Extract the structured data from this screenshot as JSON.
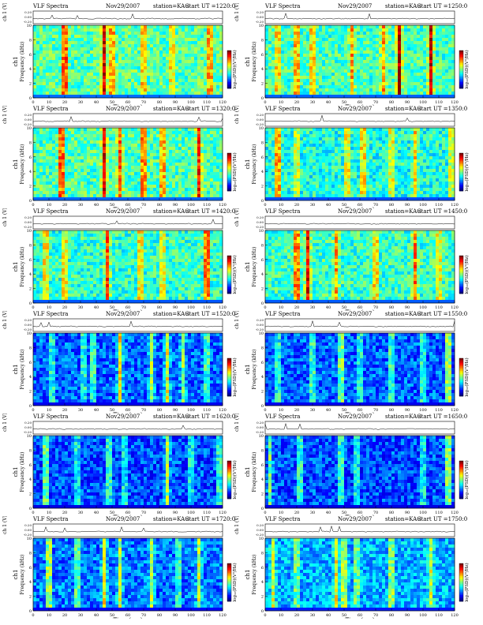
{
  "page_header": "",
  "panels": [
    {
      "title": "VLF Spectra",
      "date": "Nov29/2007",
      "station": "station=KAG",
      "start": "start  UT  =1220:0"
    },
    {
      "title": "VLF Spectra",
      "date": "Nov29/2007",
      "station": "station=KAG",
      "start": "start  UT  =1250:0"
    },
    {
      "title": "VLF Spectra",
      "date": "Nov29/2007",
      "station": "station=KAG",
      "start": "start  UT  =1320:0"
    },
    {
      "title": "VLF Spectra",
      "date": "Nov29/2007",
      "station": "station=KAG",
      "start": "start  UT  =1350:0"
    },
    {
      "title": "VLF Spectra",
      "date": "Nov29/2007",
      "station": "station=KAG",
      "start": "start  UT  =1420:0"
    },
    {
      "title": "VLF Spectra",
      "date": "Nov29/2007",
      "station": "station=KAG",
      "start": "start  UT  =1450:0"
    },
    {
      "title": "VLF Spectra",
      "date": "Nov29/2007",
      "station": "station=KAG",
      "start": "start  UT  =1520:0"
    },
    {
      "title": "VLF Spectra",
      "date": "Nov29/2007",
      "station": "station=KAG",
      "start": "start  UT  =1550:0"
    },
    {
      "title": "VLF Spectra",
      "date": "Nov29/2007",
      "station": "station=KAG",
      "start": "start  UT  =1620:0"
    },
    {
      "title": "VLF Spectra",
      "date": "Nov29/2007",
      "station": "station=KAG",
      "start": "start  UT  =1650:0"
    },
    {
      "title": "VLF Spectra",
      "date": "Nov29/2007",
      "station": "station=KAG",
      "start": "start  UT  =1720:0"
    },
    {
      "title": "VLF Spectra",
      "date": "Nov29/2007",
      "station": "station=KAG",
      "start": "start  UT  =1750:0"
    }
  ],
  "labels": {
    "waveform_ylabel": "ch 1 (V)",
    "spectrogram_ylabel_top": "ch1",
    "spectrogram_ylabel": "Frequency  (kHz)",
    "xlabel": "Time  (sec)",
    "colorbar_label": "log₁₀(PSD)(V²/Hz)"
  },
  "colors": {
    "colormap": [
      "#00007f",
      "#0000ff",
      "#007fff",
      "#00ffff",
      "#7fff7f",
      "#ffff00",
      "#ff7f00",
      "#ff0000",
      "#7f0000"
    ],
    "background": "#ffffff",
    "axis": "#000000"
  },
  "chart_data": [
    {
      "type": "heatmap",
      "x_range": [
        0,
        120
      ],
      "x_ticks": [
        0,
        10,
        20,
        30,
        40,
        50,
        60,
        70,
        80,
        90,
        100,
        110,
        120
      ],
      "y_range": [
        0,
        10
      ],
      "y_ticks": [
        0,
        2,
        4,
        6,
        8,
        10
      ],
      "waveform_ticks": [
        "0.20",
        "0.00",
        "-0.20"
      ],
      "level": 0.46,
      "bursts": [
        [
          20,
          0.95
        ],
        [
          45,
          0.8
        ],
        [
          50,
          0.7
        ],
        [
          70,
          0.6
        ],
        [
          88,
          0.5
        ],
        [
          112,
          0.7
        ]
      ]
    },
    {
      "type": "heatmap",
      "x_range": [
        0,
        120
      ],
      "x_ticks": [
        0,
        10,
        20,
        30,
        40,
        50,
        60,
        70,
        80,
        90,
        100,
        110,
        120
      ],
      "y_range": [
        0,
        10
      ],
      "y_ticks": [
        0,
        2,
        4,
        6,
        8,
        10
      ],
      "waveform_ticks": [
        "0.20",
        "0.00",
        "-0.20"
      ],
      "level": 0.44,
      "bursts": [
        [
          8,
          0.6
        ],
        [
          20,
          0.7
        ],
        [
          30,
          0.6
        ],
        [
          55,
          0.5
        ],
        [
          75,
          0.5
        ],
        [
          85,
          1.0
        ],
        [
          105,
          0.9
        ]
      ]
    },
    {
      "type": "heatmap",
      "x_range": [
        0,
        120
      ],
      "x_ticks": [
        0,
        10,
        20,
        30,
        40,
        50,
        60,
        70,
        80,
        90,
        100,
        110,
        120
      ],
      "y_range": [
        0,
        10
      ],
      "y_ticks": [
        0,
        2,
        4,
        6,
        8,
        10
      ],
      "waveform_ticks": [
        "0.20",
        "0.00",
        "-0.20"
      ],
      "level": 0.45,
      "bursts": [
        [
          18,
          0.95
        ],
        [
          45,
          0.8
        ],
        [
          55,
          0.6
        ],
        [
          70,
          0.8
        ],
        [
          82,
          0.7
        ],
        [
          105,
          0.7
        ]
      ]
    },
    {
      "type": "heatmap",
      "x_range": [
        0,
        120
      ],
      "x_ticks": [
        0,
        10,
        20,
        30,
        40,
        50,
        60,
        70,
        80,
        90,
        100,
        110,
        120
      ],
      "y_range": [
        0,
        10
      ],
      "y_ticks": [
        0,
        2,
        4,
        6,
        8,
        10
      ],
      "waveform_ticks": [
        "0.20",
        "0.00",
        "-0.20"
      ],
      "level": 0.4,
      "bursts": [
        [
          8,
          0.9
        ],
        [
          20,
          0.5
        ],
        [
          52,
          0.6
        ],
        [
          62,
          0.7
        ],
        [
          80,
          0.6
        ],
        [
          95,
          0.5
        ],
        [
          118,
          0.5
        ]
      ]
    },
    {
      "type": "heatmap",
      "x_range": [
        0,
        120
      ],
      "x_ticks": [
        0,
        10,
        20,
        30,
        40,
        50,
        60,
        70,
        80,
        90,
        100,
        110,
        120
      ],
      "y_range": [
        0,
        10
      ],
      "y_ticks": [
        0,
        2,
        4,
        6,
        8,
        10
      ],
      "waveform_ticks": [
        "0.20",
        "0.00",
        "-0.20"
      ],
      "level": 0.42,
      "bursts": [
        [
          8,
          0.6
        ],
        [
          20,
          0.6
        ],
        [
          47,
          0.7
        ],
        [
          68,
          0.6
        ],
        [
          82,
          0.5
        ],
        [
          110,
          0.95
        ]
      ]
    },
    {
      "type": "heatmap",
      "x_range": [
        0,
        120
      ],
      "x_ticks": [
        0,
        10,
        20,
        30,
        40,
        50,
        60,
        70,
        80,
        90,
        100,
        110,
        120
      ],
      "y_range": [
        0,
        10
      ],
      "y_ticks": [
        0,
        2,
        4,
        6,
        8,
        10
      ],
      "waveform_ticks": [
        "0.20",
        "0.00",
        "-0.20"
      ],
      "level": 0.43,
      "bursts": [
        [
          20,
          0.9
        ],
        [
          27,
          0.8
        ],
        [
          45,
          0.5
        ],
        [
          70,
          0.6
        ],
        [
          95,
          0.6
        ],
        [
          110,
          0.5
        ]
      ]
    },
    {
      "type": "heatmap",
      "x_range": [
        0,
        120
      ],
      "x_ticks": [
        0,
        10,
        20,
        30,
        40,
        50,
        60,
        70,
        80,
        90,
        100,
        110,
        120
      ],
      "y_range": [
        0,
        10
      ],
      "y_ticks": [
        0,
        2,
        4,
        6,
        8,
        10
      ],
      "waveform_ticks": [
        "0.20",
        "0.00",
        "-0.20"
      ],
      "level": 0.22,
      "bursts": [
        [
          12,
          0.5
        ],
        [
          32,
          0.5
        ],
        [
          38,
          0.6
        ],
        [
          55,
          0.8
        ],
        [
          75,
          0.6
        ],
        [
          85,
          0.7
        ],
        [
          95,
          0.5
        ],
        [
          110,
          0.6
        ]
      ]
    },
    {
      "type": "heatmap",
      "x_range": [
        0,
        120
      ],
      "x_ticks": [
        0,
        10,
        20,
        30,
        40,
        50,
        60,
        70,
        80,
        90,
        100,
        110,
        120
      ],
      "y_range": [
        0,
        10
      ],
      "y_ticks": [
        0,
        2,
        4,
        6,
        8,
        10
      ],
      "waveform_ticks": [
        "0.20",
        "0.00",
        "-0.20"
      ],
      "level": 0.22,
      "bursts": [
        [
          8,
          0.5
        ],
        [
          30,
          0.6
        ],
        [
          48,
          0.8
        ],
        [
          60,
          0.5
        ],
        [
          80,
          0.6
        ],
        [
          100,
          0.5
        ],
        [
          116,
          0.95
        ]
      ]
    },
    {
      "type": "heatmap",
      "x_range": [
        0,
        120
      ],
      "x_ticks": [
        0,
        10,
        20,
        30,
        40,
        50,
        60,
        70,
        80,
        90,
        100,
        110,
        120
      ],
      "y_range": [
        0,
        10
      ],
      "y_ticks": [
        0,
        2,
        4,
        6,
        8,
        10
      ],
      "waveform_ticks": [
        "0.20",
        "0.00",
        "-0.20"
      ],
      "level": 0.2,
      "bursts": [
        [
          8,
          0.8
        ],
        [
          28,
          0.5
        ],
        [
          48,
          0.6
        ],
        [
          58,
          0.5
        ],
        [
          85,
          0.6
        ],
        [
          100,
          0.5
        ],
        [
          118,
          0.6
        ]
      ]
    },
    {
      "type": "heatmap",
      "x_range": [
        0,
        120
      ],
      "x_ticks": [
        0,
        10,
        20,
        30,
        40,
        50,
        60,
        70,
        80,
        90,
        100,
        110,
        120
      ],
      "y_range": [
        0,
        10
      ],
      "y_ticks": [
        0,
        2,
        4,
        6,
        8,
        10
      ],
      "waveform_ticks": [
        "0.20",
        "0.00",
        "-0.20"
      ],
      "level": 0.2,
      "bursts": [
        [
          3,
          0.5
        ],
        [
          22,
          0.6
        ],
        [
          48,
          0.6
        ],
        [
          58,
          0.5
        ],
        [
          100,
          0.5
        ],
        [
          116,
          0.9
        ]
      ]
    },
    {
      "type": "heatmap",
      "x_range": [
        0,
        120
      ],
      "x_ticks": [
        0,
        10,
        20,
        30,
        40,
        50,
        60,
        70,
        80,
        90,
        100,
        110,
        120
      ],
      "y_range": [
        0,
        10
      ],
      "y_ticks": [
        0,
        2,
        4,
        6,
        8,
        10
      ],
      "waveform_ticks": [
        "0.20",
        "0.00",
        "-0.20"
      ],
      "level": 0.24,
      "bursts": [
        [
          10,
          0.8
        ],
        [
          28,
          0.6
        ],
        [
          45,
          0.7
        ],
        [
          55,
          0.6
        ],
        [
          75,
          0.6
        ],
        [
          92,
          0.5
        ],
        [
          105,
          0.6
        ]
      ]
    },
    {
      "type": "heatmap",
      "x_range": [
        0,
        120
      ],
      "x_ticks": [
        0,
        10,
        20,
        30,
        40,
        50,
        60,
        70,
        80,
        90,
        100,
        110,
        120
      ],
      "y_range": [
        0,
        10
      ],
      "y_ticks": [
        0,
        2,
        4,
        6,
        8,
        10
      ],
      "waveform_ticks": [
        "0.20",
        "0.00",
        "-0.20"
      ],
      "level": 0.3,
      "bursts": [
        [
          5,
          0.5
        ],
        [
          20,
          0.5
        ],
        [
          45,
          0.6
        ],
        [
          50,
          0.7
        ],
        [
          58,
          0.5
        ],
        [
          80,
          0.6
        ],
        [
          105,
          0.5
        ]
      ]
    }
  ]
}
